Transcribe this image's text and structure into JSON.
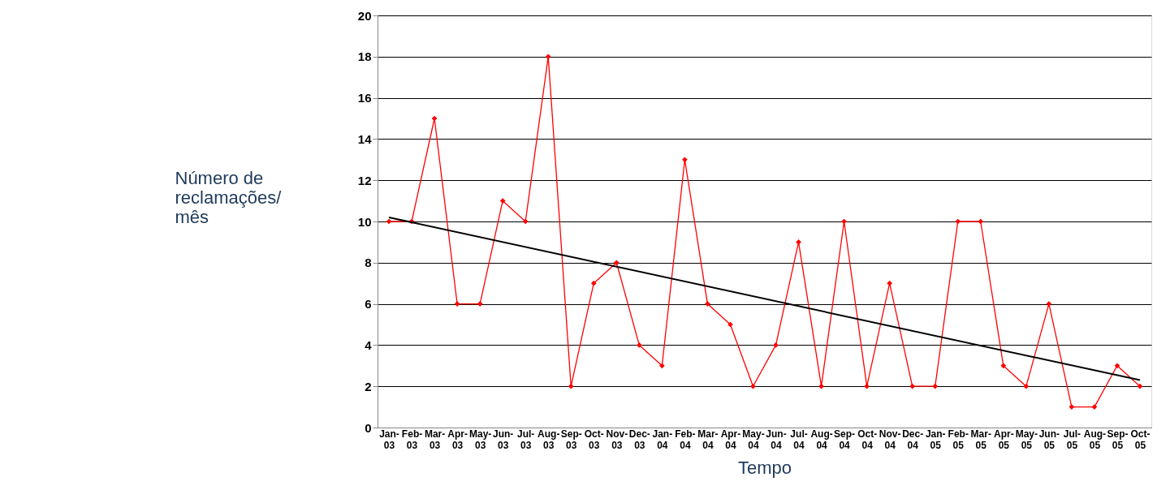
{
  "chart_data": {
    "type": "line",
    "xlabel": "Tempo",
    "ylabel": "Número de\nreclamações/\nmês",
    "categories": [
      "Jan-03",
      "Feb-03",
      "Mar-03",
      "Apr-03",
      "May-03",
      "Jun-03",
      "Jul-03",
      "Aug-03",
      "Sep-03",
      "Oct-03",
      "Nov-03",
      "Dec-03",
      "Jan-04",
      "Feb-04",
      "Mar-04",
      "Apr-04",
      "May-04",
      "Jun-04",
      "Jul-04",
      "Aug-04",
      "Sep-04",
      "Oct-04",
      "Nov-04",
      "Dec-04",
      "Jan-05",
      "Feb-05",
      "Mar-05",
      "Apr-05",
      "May-05",
      "Jun-05",
      "Jul-05",
      "Aug-05",
      "Sep-05",
      "Oct-05"
    ],
    "series": [
      {
        "color": "#ff0000",
        "marker": "diamond",
        "values": [
          10,
          10,
          15,
          6,
          6,
          11,
          10,
          18,
          2,
          7,
          8,
          4,
          3,
          13,
          6,
          5,
          2,
          4,
          9,
          2,
          10,
          2,
          7,
          2,
          2,
          10,
          10,
          3,
          2,
          6,
          1,
          1,
          3,
          2
        ]
      },
      {
        "type": "line",
        "color": "#000000",
        "marker": "none",
        "x": [
          "Jan-03",
          "Oct-05"
        ],
        "values": [
          10.2,
          2.3
        ]
      }
    ],
    "ylim": [
      0,
      20
    ],
    "yticks": [
      0,
      2,
      4,
      6,
      8,
      10,
      12,
      14,
      16,
      18,
      20
    ],
    "grid": "y",
    "line_style": "solid"
  }
}
